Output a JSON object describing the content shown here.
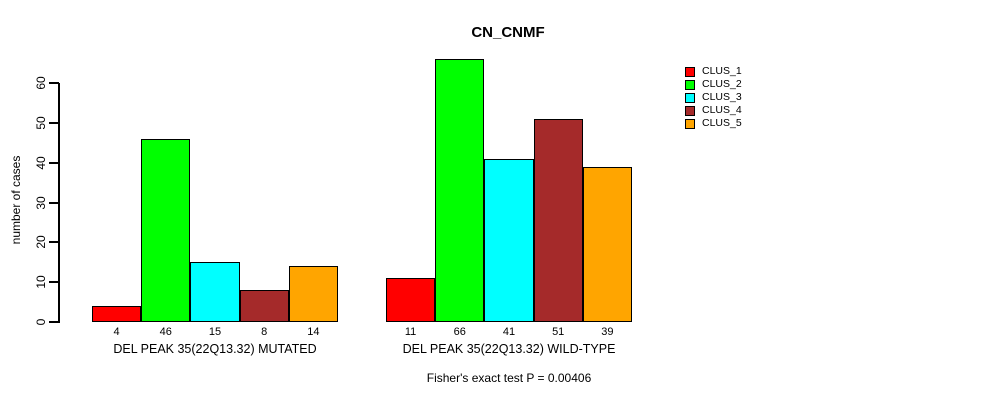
{
  "chart_data": {
    "type": "bar",
    "title": "CN_CNMF",
    "ylabel": "number of cases",
    "xlabel": "",
    "yticks": [
      0,
      10,
      20,
      30,
      40,
      50,
      60
    ],
    "ylim": [
      0,
      66
    ],
    "grid": false,
    "legend_position": "right",
    "categories": [
      "DEL PEAK 35(22Q13.32) MUTATED",
      "DEL PEAK 35(22Q13.32) WILD-TYPE"
    ],
    "groups": [
      {
        "label": "DEL PEAK 35(22Q13.32) MUTATED",
        "values": [
          4,
          46,
          15,
          8,
          14
        ]
      },
      {
        "label": "DEL PEAK 35(22Q13.32) WILD-TYPE",
        "values": [
          11,
          66,
          41,
          51,
          39
        ]
      }
    ],
    "series": [
      {
        "name": "CLUS_1",
        "color": "#FF0000",
        "values": [
          4,
          11
        ]
      },
      {
        "name": "CLUS_2",
        "color": "#00FF00",
        "values": [
          46,
          66
        ]
      },
      {
        "name": "CLUS_3",
        "color": "#00FFFF",
        "values": [
          15,
          41
        ]
      },
      {
        "name": "CLUS_4",
        "color": "#A52A2A",
        "values": [
          8,
          51
        ]
      },
      {
        "name": "CLUS_5",
        "color": "#FFA500",
        "values": [
          14,
          39
        ]
      }
    ],
    "legend": [
      {
        "label": "CLUS_1",
        "color": "#FF0000"
      },
      {
        "label": "CLUS_2",
        "color": "#00FF00"
      },
      {
        "label": "CLUS_3",
        "color": "#00FFFF"
      },
      {
        "label": "CLUS_4",
        "color": "#A52A2A"
      },
      {
        "label": "CLUS_5",
        "color": "#FFA500"
      }
    ],
    "footnote": "Fisher's exact test P = 0.00406"
  }
}
